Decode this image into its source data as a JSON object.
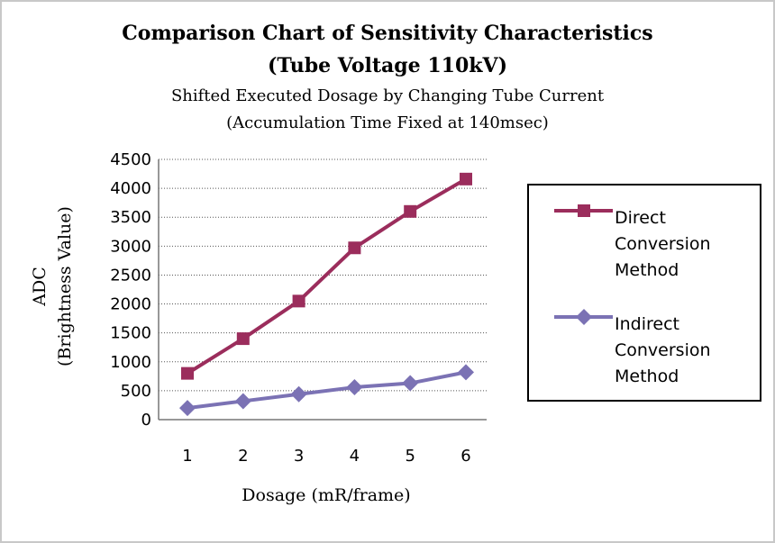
{
  "chart_data": {
    "type": "line",
    "title": "Comparison Chart of Sensitivity Characteristics",
    "title_line2": "(Tube Voltage 110kV)",
    "subtitle": "Shifted Executed Dosage by Changing Tube Current",
    "subtitle_line2": "(Accumulation Time Fixed at 140msec)",
    "xlabel": "Dosage (mR/frame)",
    "ylabel": "ADC",
    "ylabel_line2": "(Brightness Value)",
    "x": [
      1,
      2,
      3,
      4,
      5,
      6
    ],
    "ylim": [
      0,
      4500
    ],
    "yticks": [
      0,
      500,
      1000,
      1500,
      2000,
      2500,
      3000,
      3500,
      4000,
      4500
    ],
    "grid": true,
    "legend_position": "right",
    "series": [
      {
        "name": "Direct Conversion Method",
        "name_lines": [
          "Direct",
          "Conversion",
          "Method"
        ],
        "values": [
          800,
          1400,
          2050,
          2970,
          3600,
          4160
        ],
        "color": "#9b2d5c",
        "marker": "square"
      },
      {
        "name": "Indirect Conversion Method",
        "name_lines": [
          "Indirect",
          "Conversion",
          "Method"
        ],
        "values": [
          200,
          320,
          440,
          560,
          630,
          820
        ],
        "color": "#7b72b4",
        "marker": "diamond"
      }
    ]
  }
}
